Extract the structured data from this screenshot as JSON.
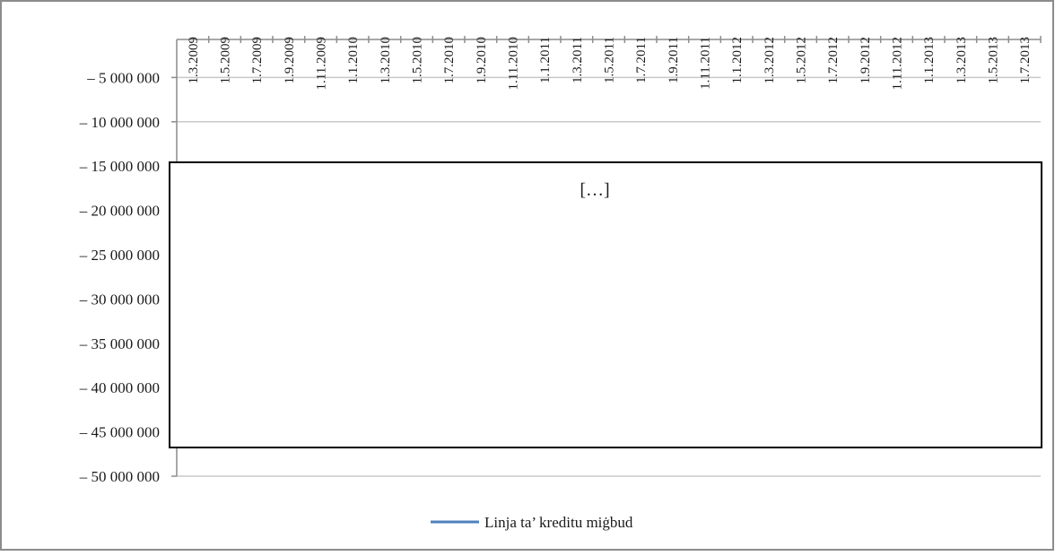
{
  "chart_data": {
    "type": "line",
    "title": "",
    "xlabel": "",
    "ylabel": "",
    "ylim": [
      -50000000,
      0
    ],
    "y_tick_values": [
      -5000000,
      -10000000,
      -15000000,
      -20000000,
      -25000000,
      -30000000,
      -35000000,
      -40000000,
      -45000000,
      -50000000
    ],
    "y_tick_labels": [
      "– 5 000 000",
      "– 10 000 000",
      "– 15 000 000",
      "– 20 000 000",
      "– 25 000 000",
      "– 30 000 000",
      "– 35 000 000",
      "– 40 000 000",
      "– 45 000 000",
      "– 50 000 000"
    ],
    "x_tick_labels": [
      "1.3.2009",
      "1.5.2009",
      "1.7.2009",
      "1.9.2009",
      "1.11.2009",
      "1.1.2010",
      "1.3.2010",
      "1.5.2010",
      "1.7.2010",
      "1.9.2010",
      "1.11.2010",
      "1.1.2011",
      "1.3.2011",
      "1.5.2011",
      "1.7.2011",
      "1.9.2011",
      "1.11.2011",
      "1.1.2012",
      "1.3.2012",
      "1.5.2012",
      "1.7.2012",
      "1.9.2012",
      "1.11.2012",
      "1.1.2013",
      "1.3.2013",
      "1.5.2013",
      "1.7.2013"
    ],
    "series": [
      {
        "name": "Linja ta’ kreditu miġbud",
        "values": []
      }
    ],
    "series_color": "#4f81bd",
    "grid": true,
    "legend_position": "bottom",
    "redacted_region_text": "[…]"
  }
}
